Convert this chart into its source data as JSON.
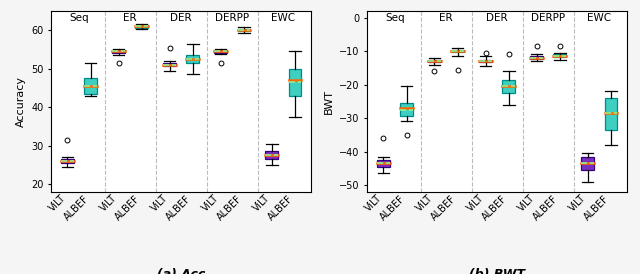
{
  "acc": {
    "groups": [
      "Seq",
      "ER",
      "DER",
      "DERPP",
      "EWC"
    ],
    "vilt": {
      "Seq": {
        "med": 26.0,
        "q1": 25.5,
        "q3": 26.5,
        "whislo": 24.5,
        "whishi": 27.0,
        "mean": 26.0,
        "fliers": [
          31.5
        ]
      },
      "ER": {
        "med": 54.5,
        "q1": 54.2,
        "q3": 54.8,
        "whislo": 53.5,
        "whishi": 55.2,
        "mean": 54.5,
        "fliers": [
          51.5
        ]
      },
      "DER": {
        "med": 51.0,
        "q1": 50.7,
        "q3": 51.4,
        "whislo": 49.5,
        "whishi": 52.0,
        "mean": 51.0,
        "fliers": [
          55.5
        ]
      },
      "DERPP": {
        "med": 54.5,
        "q1": 54.2,
        "q3": 54.8,
        "whislo": 53.8,
        "whishi": 55.2,
        "mean": 54.5,
        "fliers": [
          51.5
        ]
      },
      "EWC": {
        "med": 27.5,
        "q1": 26.5,
        "q3": 28.5,
        "whislo": 25.0,
        "whishi": 30.5,
        "mean": 27.5,
        "fliers": []
      }
    },
    "albef": {
      "Seq": {
        "med": 45.5,
        "q1": 43.5,
        "q3": 47.5,
        "whislo": 43.0,
        "whishi": 51.5,
        "mean": 45.5,
        "fliers": []
      },
      "ER": {
        "med": 61.0,
        "q1": 60.7,
        "q3": 61.3,
        "whislo": 60.3,
        "whishi": 61.7,
        "mean": 61.0,
        "fliers": []
      },
      "DER": {
        "med": 52.5,
        "q1": 51.5,
        "q3": 53.5,
        "whislo": 48.5,
        "whishi": 56.5,
        "mean": 52.5,
        "fliers": []
      },
      "DERPP": {
        "med": 60.0,
        "q1": 59.7,
        "q3": 60.3,
        "whislo": 59.2,
        "whishi": 60.8,
        "mean": 60.0,
        "fliers": []
      },
      "EWC": {
        "med": 47.0,
        "q1": 43.0,
        "q3": 50.0,
        "whislo": 37.5,
        "whishi": 54.5,
        "mean": 46.5,
        "fliers": []
      }
    },
    "ylim": [
      18,
      65
    ],
    "yticks": [
      20,
      30,
      40,
      50,
      60
    ],
    "ylabel": "Accuracy",
    "title": "(a) Acc"
  },
  "bwt": {
    "groups": [
      "Seq",
      "ER",
      "DER",
      "DERPP",
      "EWC"
    ],
    "vilt": {
      "Seq": {
        "med": -43.5,
        "q1": -44.5,
        "q3": -42.5,
        "whislo": -46.5,
        "whishi": -41.5,
        "mean": -43.5,
        "fliers": [
          -36.0
        ]
      },
      "ER": {
        "med": -13.0,
        "q1": -13.3,
        "q3": -12.7,
        "whislo": -14.0,
        "whishi": -12.0,
        "mean": -13.0,
        "fliers": [
          -16.0
        ]
      },
      "DER": {
        "med": -13.0,
        "q1": -13.3,
        "q3": -12.5,
        "whislo": -14.5,
        "whishi": -11.5,
        "mean": -13.0,
        "fliers": [
          -10.5
        ]
      },
      "DERPP": {
        "med": -12.0,
        "q1": -12.3,
        "q3": -11.5,
        "whislo": -13.0,
        "whishi": -11.0,
        "mean": -12.0,
        "fliers": [
          -8.5
        ]
      },
      "EWC": {
        "med": -43.5,
        "q1": -45.5,
        "q3": -41.5,
        "whislo": -49.0,
        "whishi": -40.5,
        "mean": -43.5,
        "fliers": []
      }
    },
    "albef": {
      "Seq": {
        "med": -27.0,
        "q1": -29.5,
        "q3": -25.5,
        "whislo": -31.0,
        "whishi": -20.5,
        "mean": -27.5,
        "fliers": [
          -35.0
        ]
      },
      "ER": {
        "med": -10.0,
        "q1": -10.3,
        "q3": -9.7,
        "whislo": -11.5,
        "whishi": -9.0,
        "mean": -10.0,
        "fliers": [
          -15.5
        ]
      },
      "DER": {
        "med": -20.5,
        "q1": -22.5,
        "q3": -18.5,
        "whislo": -26.0,
        "whishi": -16.0,
        "mean": -20.5,
        "fliers": [
          -11.0
        ]
      },
      "DERPP": {
        "med": -11.5,
        "q1": -11.8,
        "q3": -11.0,
        "whislo": -12.5,
        "whishi": -10.5,
        "mean": -11.5,
        "fliers": [
          -8.5
        ]
      },
      "EWC": {
        "med": -28.5,
        "q1": -33.5,
        "q3": -24.0,
        "whislo": -38.0,
        "whishi": -22.0,
        "mean": -28.5,
        "fliers": []
      }
    },
    "ylim": [
      -52,
      2
    ],
    "yticks": [
      -50,
      -40,
      -30,
      -20,
      -10,
      0
    ],
    "ylabel": "BWT",
    "title": "(b) BWT"
  },
  "vilt_facecolor": "#7B2FBE",
  "albef_facecolor": "#3ECFC0",
  "vilt_edgecolor": "#3a0080",
  "albef_edgecolor": "#008B8B",
  "median_color": "#FF6600",
  "mean_color": "#90EE90",
  "flier_color": "black",
  "sep_color": "#aaaaaa",
  "group_labels": [
    "Seq",
    "ER",
    "DER",
    "DERPP",
    "EWC"
  ],
  "x_tick_labels": [
    "ViLT",
    "ALBEF",
    "ViLT",
    "ALBEF",
    "ViLT",
    "ALBEF",
    "ViLT",
    "ALBEF",
    "ViLT",
    "ALBEF"
  ],
  "background_color": "#ffffff",
  "fig_background": "#f5f5f5"
}
